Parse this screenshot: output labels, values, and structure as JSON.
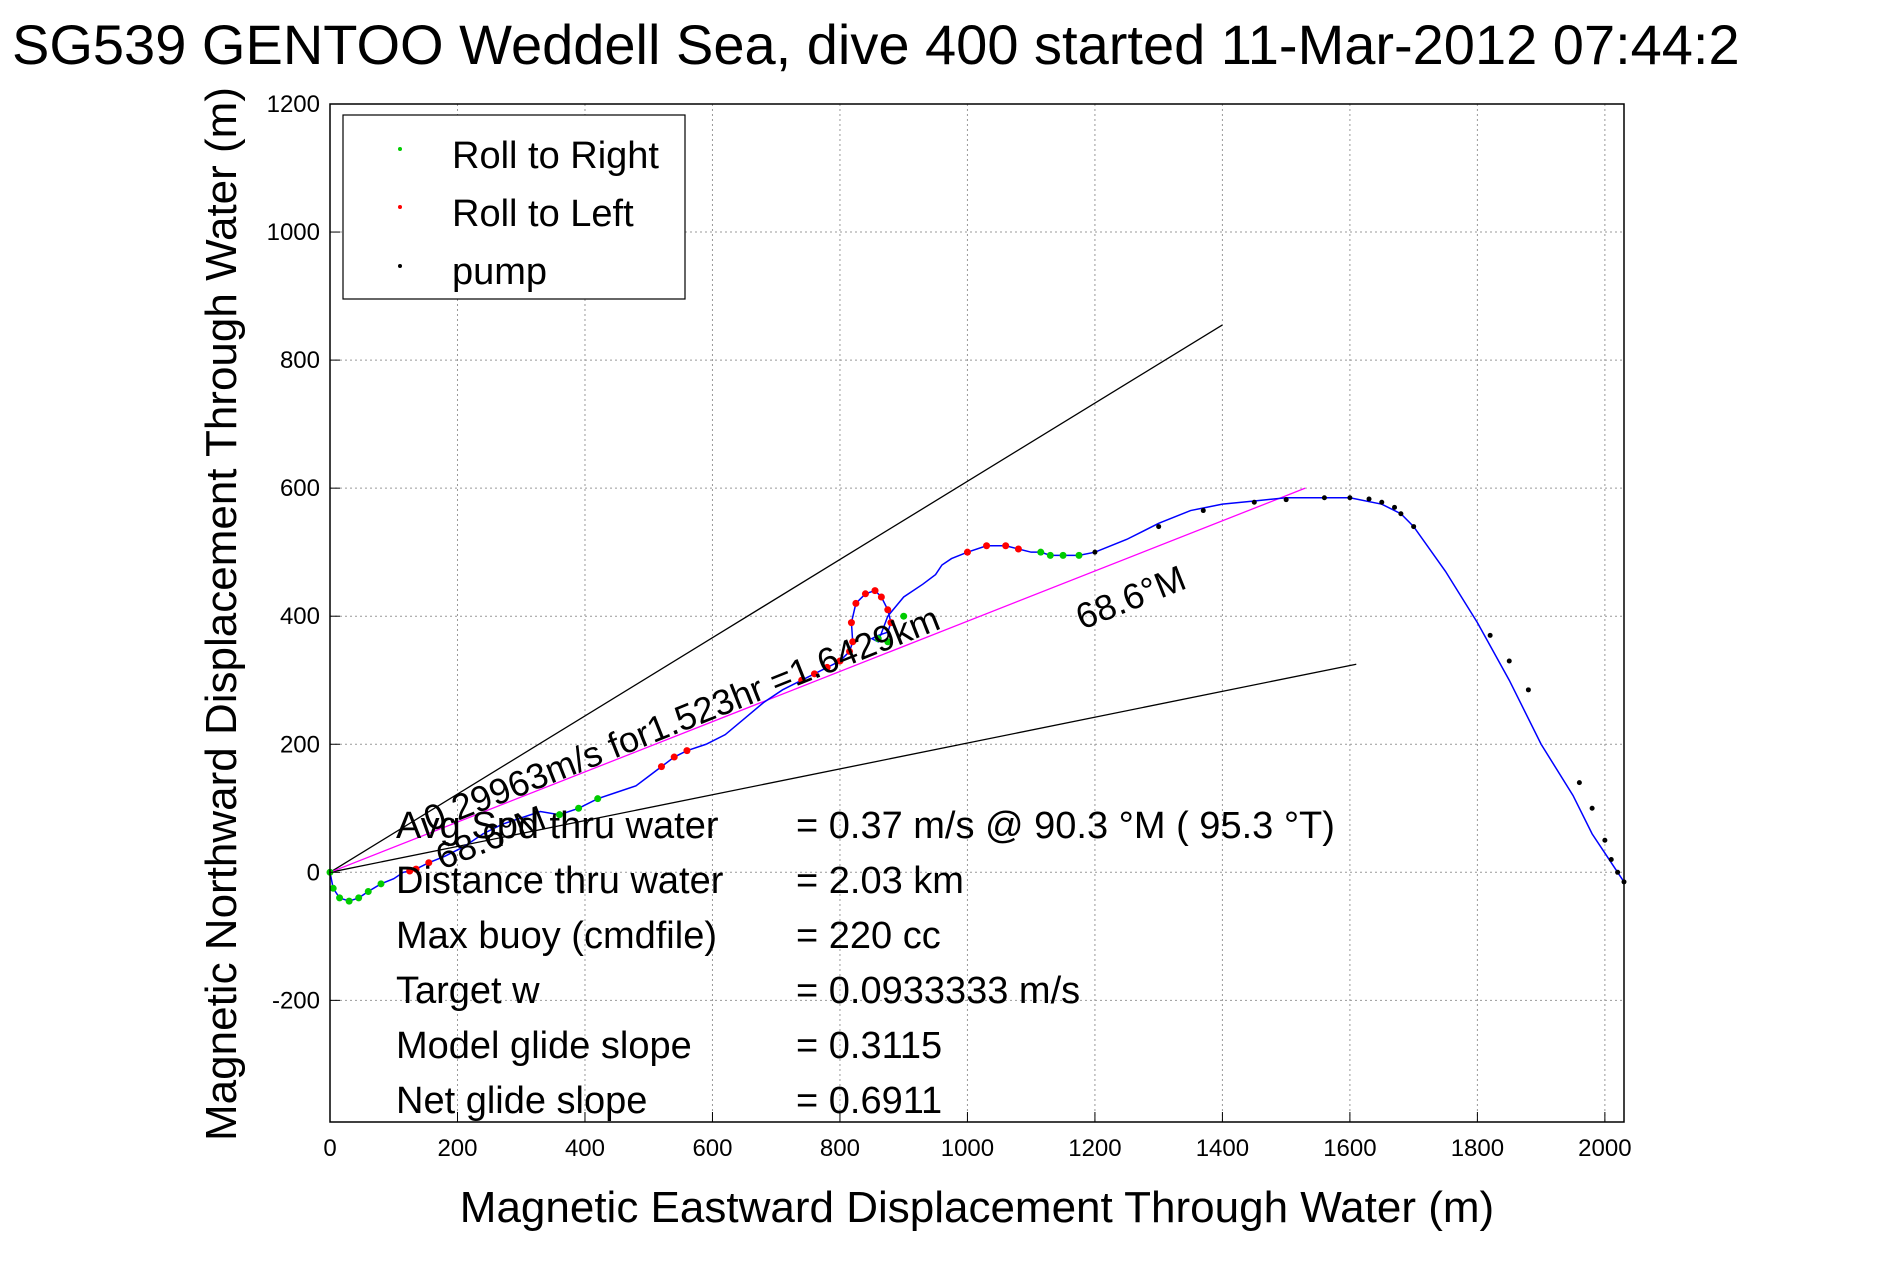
{
  "chart_data": {
    "type": "line",
    "title": "SG539 GENTOO Weddell Sea, dive 400 started 11-Mar-2012 07:44:2",
    "xlabel": "Magnetic Eastward Displacement Through Water (m)",
    "ylabel": "Magnetic Northward Displacement Through Water (m)",
    "xlim": [
      0,
      2030
    ],
    "ylim": [
      -390,
      1200
    ],
    "x_ticks": [
      0,
      200,
      400,
      600,
      800,
      1000,
      1200,
      1400,
      1600,
      1800,
      2000
    ],
    "y_ticks": [
      -200,
      0,
      200,
      400,
      600,
      800,
      1000,
      1200
    ],
    "grid": true,
    "legend_placement": "top-left",
    "legend": [
      "Roll to Right",
      "Roll to Left",
      "pump"
    ],
    "colors": {
      "track": "#0000ff",
      "roll_right": "#00cc00",
      "roll_left": "#ff0000",
      "pump": "#000000",
      "course_line": "#ff00ff",
      "cone_lines": "#000000",
      "grid": "#999999"
    },
    "series": [
      {
        "name": "track",
        "x": [
          0,
          5,
          15,
          30,
          45,
          60,
          80,
          100,
          115,
          125,
          135,
          155,
          180,
          210,
          240,
          270,
          300,
          330,
          360,
          390,
          420,
          450,
          480,
          500,
          520,
          540,
          560,
          590,
          620,
          650,
          680,
          710,
          740,
          760,
          780,
          800,
          815,
          820,
          818,
          825,
          840,
          855,
          865,
          875,
          880,
          875,
          860,
          850,
          860,
          875,
          900,
          930,
          950,
          960,
          975,
          1000,
          1030,
          1060,
          1080,
          1100,
          1115,
          1130,
          1150,
          1175,
          1200,
          1250,
          1300,
          1350,
          1400,
          1450,
          1500,
          1550,
          1600,
          1650,
          1680,
          1700,
          1750,
          1800,
          1850,
          1900,
          1950,
          1980,
          2000,
          2020,
          2030
        ],
        "y": [
          0,
          -25,
          -40,
          -45,
          -40,
          -30,
          -18,
          -10,
          0,
          2,
          5,
          15,
          25,
          40,
          60,
          75,
          85,
          95,
          90,
          100,
          115,
          125,
          135,
          150,
          165,
          180,
          190,
          200,
          215,
          240,
          265,
          285,
          300,
          310,
          320,
          330,
          345,
          360,
          390,
          420,
          435,
          440,
          430,
          410,
          390,
          375,
          370,
          365,
          360,
          400,
          430,
          450,
          465,
          480,
          490,
          500,
          510,
          510,
          505,
          500,
          500,
          495,
          495,
          495,
          500,
          520,
          545,
          565,
          575,
          580,
          585,
          585,
          585,
          575,
          560,
          540,
          470,
          390,
          300,
          200,
          120,
          60,
          30,
          0,
          -15
        ]
      },
      {
        "name": "Roll to Right",
        "x": [
          0,
          5,
          15,
          30,
          45,
          60,
          80,
          360,
          390,
          420,
          860,
          875,
          900,
          1115,
          1130,
          1150,
          1175
        ],
        "y": [
          0,
          -25,
          -40,
          -45,
          -40,
          -30,
          -18,
          90,
          100,
          115,
          365,
          360,
          400,
          500,
          495,
          495,
          495
        ]
      },
      {
        "name": "Roll to Left",
        "x": [
          125,
          135,
          155,
          520,
          540,
          560,
          740,
          760,
          780,
          800,
          815,
          820,
          818,
          825,
          840,
          855,
          865,
          875,
          880,
          1000,
          1030,
          1060,
          1080
        ],
        "y": [
          2,
          5,
          15,
          165,
          180,
          190,
          300,
          310,
          320,
          330,
          345,
          360,
          390,
          420,
          435,
          440,
          430,
          410,
          390,
          500,
          510,
          510,
          505
        ]
      },
      {
        "name": "pump",
        "x": [
          1200,
          1300,
          1370,
          1450,
          1500,
          1560,
          1600,
          1630,
          1650,
          1670,
          1680,
          1700,
          1820,
          1850,
          1880,
          1960,
          1980,
          2000,
          2010,
          2020,
          2030
        ],
        "y": [
          500,
          540,
          565,
          578,
          582,
          585,
          585,
          583,
          578,
          570,
          560,
          540,
          370,
          330,
          285,
          140,
          100,
          50,
          20,
          0,
          -15
        ]
      }
    ],
    "reference_lines": [
      {
        "name": "cone-upper",
        "x": [
          0,
          1400
        ],
        "y": [
          0,
          855
        ]
      },
      {
        "name": "cone-lower",
        "x": [
          0,
          1610
        ],
        "y": [
          0,
          325
        ]
      },
      {
        "name": "course",
        "x": [
          0,
          1530
        ],
        "y": [
          0,
          600
        ]
      }
    ],
    "annotations": {
      "avg_speed_label": "0.29963m/s for1.523hr =1.6429km",
      "heading_label_far": "68.6°M",
      "heading_label_near": "68.6°M"
    },
    "stats": [
      {
        "label": "Avg Spd thru water",
        "value": "=  0.37 m/s @  90.3 °M ( 95.3 °T)"
      },
      {
        "label": "Distance thru water",
        "value": "=  2.03 km"
      },
      {
        "label": "Max buoy (cmdfile)",
        "value": "= 220 cc"
      },
      {
        "label": "Target w",
        "value": "= 0.0933333 m/s"
      },
      {
        "label": "Model glide slope",
        "value": "= 0.3115"
      },
      {
        "label": "Net glide slope",
        "value": "= 0.6911"
      }
    ]
  }
}
